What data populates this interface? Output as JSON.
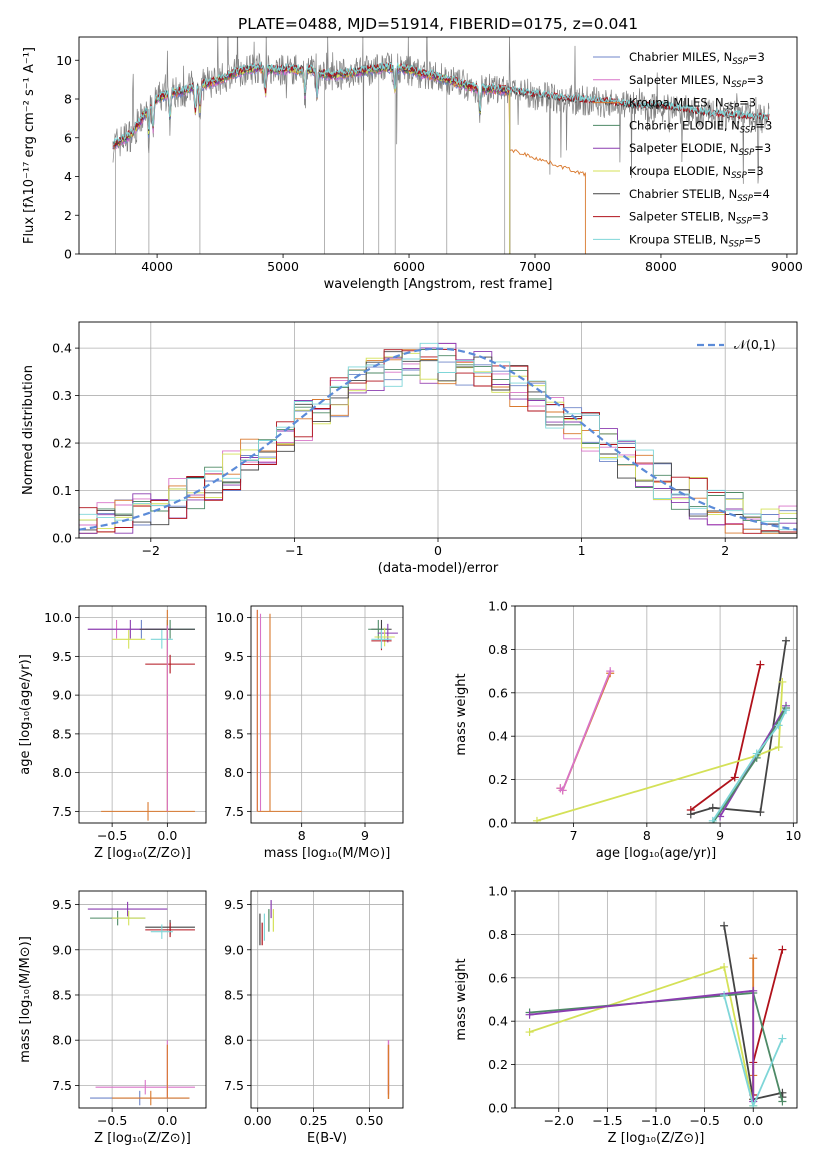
{
  "title": "PLATE=0488, MJD=51914, FIBERID=0175, z=0.041",
  "chart_data": [
    {
      "id": "spectrum",
      "type": "line",
      "xlabel": "wavelength [Angstrom, rest frame]",
      "ylabel": "Flux [fλ10⁻¹⁷ erg cm⁻² s⁻¹ A⁻¹]",
      "xlim": [
        3380,
        9080
      ],
      "ylim": [
        0,
        11.2
      ],
      "xticks": [
        4000,
        5000,
        6000,
        7000,
        8000,
        9000
      ],
      "yticks": [
        0,
        2,
        4,
        6,
        8,
        10
      ],
      "grid": false,
      "legend": "top-right",
      "data_continuum": {
        "x": [
          3650,
          3700,
          3800,
          3900,
          4000,
          4100,
          4200,
          4300,
          4400,
          4500,
          4600,
          4700,
          4800,
          4900,
          5000,
          5100,
          5200,
          5300,
          5400,
          5500,
          5600,
          5700,
          5800,
          5900,
          6000,
          6100,
          6200,
          6300,
          6400,
          6500,
          6600,
          6700,
          6800,
          6900,
          7000,
          7200,
          7400,
          7600,
          7800,
          8000,
          8200,
          8400,
          8600,
          8800
        ],
        "y": [
          5.6,
          5.8,
          6.2,
          7.2,
          8.0,
          8.3,
          8.4,
          8.6,
          8.8,
          9.0,
          9.3,
          9.5,
          9.6,
          9.5,
          9.5,
          9.5,
          9.5,
          9.3,
          9.2,
          9.3,
          9.4,
          9.5,
          9.6,
          9.6,
          9.5,
          9.3,
          9.2,
          9.0,
          8.8,
          8.6,
          8.5,
          8.5,
          8.4,
          8.3,
          8.2,
          8.0,
          7.9,
          7.8,
          7.6,
          7.6,
          7.4,
          7.2,
          7.1,
          7.0
        ]
      },
      "series": [
        {
          "name": "Chabrier MILES, N_SSP=3",
          "color": "#6f86c9",
          "x_end": 6800
        },
        {
          "name": "Salpeter MILES, N_SSP=3",
          "color": "#d874c8",
          "x_end": 6800
        },
        {
          "name": "Kroupa MILES, N_SSP=3",
          "color": "#d9792e",
          "x_end": 7400
        },
        {
          "name": "Chabrier ELODIE, N_SSP=3",
          "color": "#4e8a66",
          "x_end": 6800
        },
        {
          "name": "Salpeter ELODIE, N_SSP=3",
          "color": "#8b3db0",
          "x_end": 6800
        },
        {
          "name": "Kroupa ELODIE, N_SSP=3",
          "color": "#d4e157",
          "x_end": 6800
        },
        {
          "name": "Chabrier STELIB, N_SSP=4",
          "color": "#444444",
          "x_end": 8860
        },
        {
          "name": "Salpeter STELIB, N_SSP=3",
          "color": "#b0121b",
          "x_end": 8860
        },
        {
          "name": "Kroupa STELIB, N_SSP=5",
          "color": "#7fd6d8",
          "x_end": 8860
        }
      ]
    },
    {
      "id": "residuals",
      "type": "line",
      "xlabel": "(data-model)/error",
      "ylabel": "Normed distribution",
      "xlim": [
        -2.5,
        2.5
      ],
      "ylim": [
        0,
        0.455
      ],
      "xticks": [
        -2,
        -1,
        0,
        1,
        2
      ],
      "yticks": [
        0.0,
        0.1,
        0.2,
        0.3,
        0.4
      ],
      "grid": true,
      "legend": "top-right",
      "reference": {
        "name": "𝒩(0,1)",
        "color": "#5b8bd8"
      }
    },
    {
      "id": "age-vs-Z",
      "type": "scatter",
      "xlabel": "Z [log₁₀(Z/Z⊙)]",
      "ylabel": "age  [log₁₀(age/yr)]",
      "xlim": [
        -0.8,
        0.35
      ],
      "ylim": [
        7.35,
        10.15
      ],
      "xticks": [
        -0.5,
        0.0
      ],
      "yticks": [
        7.5,
        8.0,
        8.5,
        9.0,
        9.5,
        10.0
      ],
      "grid": true,
      "points": [
        {
          "c": "#6f86c9",
          "x": -0.72,
          "x2": 0.25,
          "y": 9.85
        },
        {
          "c": "#d874c8",
          "x": -0.72,
          "x2": -0.2,
          "y": 9.85
        },
        {
          "c": "#4e8a66",
          "x": -0.2,
          "x2": 0.25,
          "y": 9.85
        },
        {
          "c": "#8b3db0",
          "x": -0.72,
          "x2": 0.05,
          "y": 9.85
        },
        {
          "c": "#d4e157",
          "x": -0.5,
          "x2": -0.2,
          "y": 9.72
        },
        {
          "c": "#444444",
          "x": -0.25,
          "x2": 0.25,
          "y": 9.85
        },
        {
          "c": "#b0121b",
          "x": -0.2,
          "x2": 0.25,
          "y": 9.4
        },
        {
          "c": "#7fd6d8",
          "x": -0.15,
          "x2": 0.05,
          "y": 9.72
        },
        {
          "c": "#d9792e",
          "x": -0.6,
          "x2": 0.25,
          "y": 7.5
        }
      ]
    },
    {
      "id": "age-vs-mass",
      "type": "scatter",
      "xlabel": "mass [log₁₀(M/M⊙)]",
      "ylabel": "",
      "xlim": [
        7.2,
        9.6
      ],
      "ylim": [
        7.35,
        10.15
      ],
      "xticks": [
        8,
        9
      ],
      "yticks": [
        7.5,
        8.0,
        8.5,
        9.0,
        9.5,
        10.0
      ],
      "grid": true
    },
    {
      "id": "weight-vs-age",
      "type": "line",
      "xlabel": "age  [log₁₀(age/yr)]",
      "ylabel": "mass weight",
      "xlim": [
        6.2,
        10.05
      ],
      "ylim": [
        0,
        1.0
      ],
      "xticks": [
        7,
        8,
        9,
        10
      ],
      "yticks": [
        0.0,
        0.2,
        0.4,
        0.6,
        0.8,
        1.0
      ],
      "grid": true,
      "series": [
        {
          "c": "#d9792e",
          "x": [
            6.82,
            6.85,
            7.5
          ],
          "y": [
            0.16,
            0.15,
            0.69
          ]
        },
        {
          "c": "#d874c8",
          "x": [
            6.82,
            6.85,
            7.5
          ],
          "y": [
            0.16,
            0.15,
            0.7
          ]
        },
        {
          "c": "#b0121b",
          "x": [
            8.6,
            9.2,
            9.55
          ],
          "y": [
            0.06,
            0.21,
            0.73
          ]
        },
        {
          "c": "#444444",
          "x": [
            8.6,
            8.9,
            9.55,
            9.9
          ],
          "y": [
            0.04,
            0.07,
            0.05,
            0.84
          ]
        },
        {
          "c": "#d4e157",
          "x": [
            6.5,
            9.5,
            9.8,
            9.85
          ],
          "y": [
            0.01,
            0.31,
            0.35,
            0.65
          ]
        },
        {
          "c": "#8b3db0",
          "x": [
            9.0,
            9.9
          ],
          "y": [
            0.03,
            0.54
          ]
        },
        {
          "c": "#4e8a66",
          "x": [
            8.9,
            9.5,
            9.9
          ],
          "y": [
            0.0,
            0.3,
            0.53
          ]
        },
        {
          "c": "#7fd6d8",
          "x": [
            8.9,
            9.5,
            9.8,
            9.9
          ],
          "y": [
            0.01,
            0.32,
            0.45,
            0.52
          ]
        }
      ]
    },
    {
      "id": "mass-vs-Z",
      "type": "scatter",
      "xlabel": "Z [log₁₀(Z/Z⊙)]",
      "ylabel": "mass [log₁₀(M/M⊙)]",
      "xlim": [
        -0.8,
        0.35
      ],
      "ylim": [
        7.25,
        9.65
      ],
      "xticks": [
        -0.5,
        0.0
      ],
      "yticks": [
        7.5,
        8.0,
        8.5,
        9.0,
        9.5
      ],
      "grid": true
    },
    {
      "id": "mass-vs-ebv",
      "type": "scatter",
      "xlabel": "E(B-V)",
      "ylabel": "",
      "xlim": [
        -0.03,
        0.65
      ],
      "ylim": [
        7.25,
        9.65
      ],
      "xticks": [
        0.0,
        0.25,
        0.5
      ],
      "yticks": [
        7.5,
        8.0,
        8.5,
        9.0,
        9.5
      ],
      "grid": true
    },
    {
      "id": "weight-vs-Z",
      "type": "line",
      "xlabel": "Z [log₁₀(Z/Z⊙)]",
      "ylabel": "mass weight",
      "xlim": [
        -2.45,
        0.45
      ],
      "ylim": [
        0,
        1.0
      ],
      "xticks": [
        -2.0,
        -1.5,
        -1.0,
        -0.5,
        0.0
      ],
      "yticks": [
        0.0,
        0.2,
        0.4,
        0.6,
        0.8,
        1.0
      ],
      "grid": true,
      "series": [
        {
          "c": "#d9792e",
          "x": [
            0.0,
            0.0,
            0.0
          ],
          "y": [
            0.69,
            0.15,
            0.04
          ]
        },
        {
          "c": "#b0121b",
          "x": [
            0.0,
            0.0,
            0.3
          ],
          "y": [
            0.06,
            0.21,
            0.73
          ]
        },
        {
          "c": "#444444",
          "x": [
            -0.3,
            0.0,
            0.3,
            0.3
          ],
          "y": [
            0.84,
            0.04,
            0.07,
            0.05
          ]
        },
        {
          "c": "#d4e157",
          "x": [
            -2.3,
            -0.3,
            0.0
          ],
          "y": [
            0.35,
            0.65,
            0.01
          ]
        },
        {
          "c": "#4e8a66",
          "x": [
            -2.3,
            0.0,
            0.3
          ],
          "y": [
            0.44,
            0.53,
            0.03
          ]
        },
        {
          "c": "#8b3db0",
          "x": [
            -2.3,
            0.0,
            0.0
          ],
          "y": [
            0.43,
            0.54,
            0.03
          ]
        },
        {
          "c": "#7fd6d8",
          "x": [
            -0.3,
            0.0,
            0.3
          ],
          "y": [
            0.52,
            0.01,
            0.32
          ]
        }
      ]
    }
  ]
}
